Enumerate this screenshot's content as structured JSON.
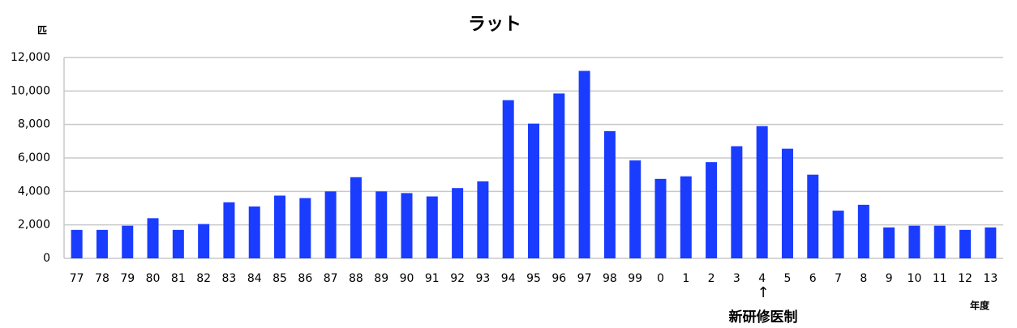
{
  "chart_data": {
    "type": "bar",
    "title": "ラット",
    "y_label": "匹",
    "x_label": "年度",
    "categories": [
      "77",
      "78",
      "79",
      "80",
      "81",
      "82",
      "83",
      "84",
      "85",
      "86",
      "87",
      "88",
      "89",
      "90",
      "91",
      "92",
      "93",
      "94",
      "95",
      "96",
      "97",
      "98",
      "99",
      "0",
      "1",
      "2",
      "3",
      "4",
      "5",
      "6",
      "7",
      "8",
      "9",
      "10",
      "11",
      "12",
      "13"
    ],
    "values": [
      1700,
      1700,
      1950,
      2400,
      1700,
      2050,
      3350,
      3100,
      3750,
      3600,
      4000,
      4850,
      4000,
      3900,
      3700,
      4200,
      4600,
      9450,
      8050,
      9850,
      11200,
      7600,
      5850,
      4750,
      4900,
      5750,
      6700,
      7900,
      6550,
      5000,
      2850,
      3200,
      1850,
      1950,
      1950,
      1700,
      1850
    ],
    "color": "#1a3cff",
    "ylim": [
      0,
      12000
    ],
    "yticks": [
      0,
      {
        "value": 2000,
        "label": "2,000"
      },
      {
        "value": 4000,
        "label": "4,000"
      },
      {
        "value": 6000,
        "label": "6,000"
      },
      {
        "value": 8000,
        "label": "8,000"
      },
      {
        "value": 10000,
        "label": "10,000"
      },
      {
        "value": 12000,
        "label": "12,000"
      }
    ],
    "grid": true,
    "annotation": {
      "arrow": "↑",
      "text": "新研修医制"
    }
  }
}
